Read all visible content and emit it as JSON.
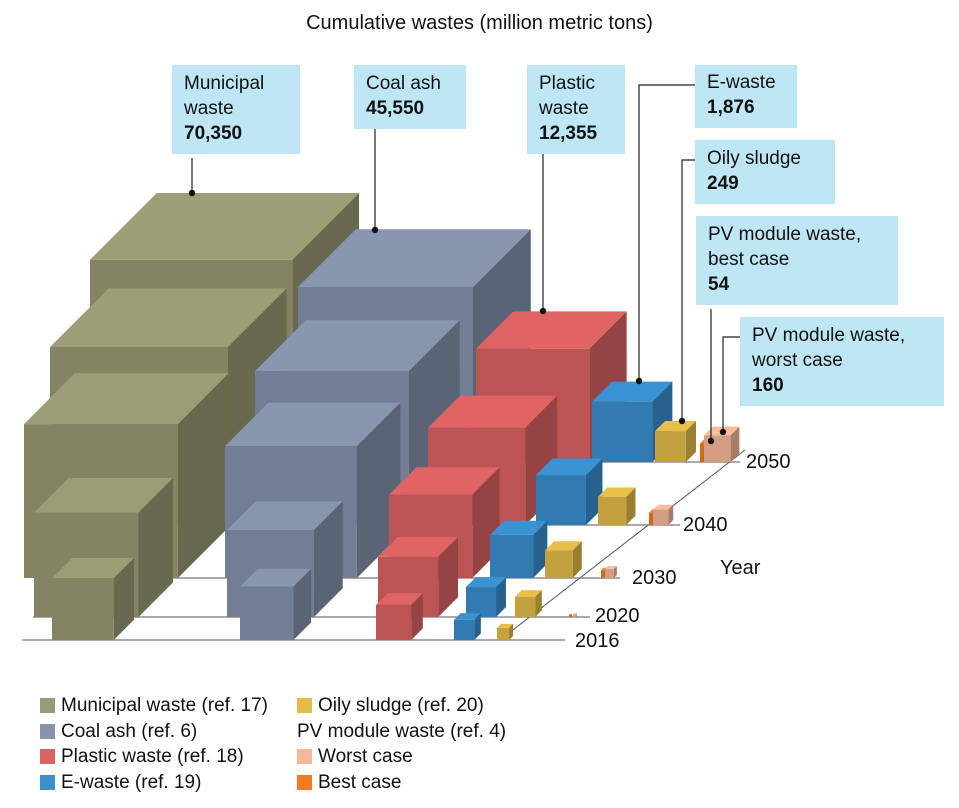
{
  "chart_data": {
    "type": "3d-bar",
    "title": "Cumulative wastes (million metric tons)",
    "zlabel": "Year",
    "years": [
      "2016",
      "2020",
      "2030",
      "2040",
      "2050"
    ],
    "series": [
      {
        "key": "municipal",
        "name": "Municipal waste (ref. 17)",
        "callout": "Municipal waste",
        "color": "#9a9a74",
        "values": [
          2000,
          9700,
          31000,
          47900,
          70350
        ]
      },
      {
        "key": "coal",
        "name": "Coal ash (ref. 6)",
        "callout": "Coal ash",
        "color": "#8593ac",
        "values": [
          1300,
          5600,
          19500,
          31000,
          45550
        ]
      },
      {
        "key": "plastic",
        "name": "Plastic waste (ref. 18)",
        "callout": "Plastic waste",
        "color": "#dc6262",
        "values": [
          370,
          1850,
          4900,
          7800,
          12355
        ]
      },
      {
        "key": "ewaste",
        "name": "E-waste (ref. 19)",
        "callout": "E-waste",
        "color": "#3a8fcf",
        "values": [
          70,
          230,
          680,
          1060,
          1876
        ]
      },
      {
        "key": "oily",
        "name": "Oily sludge (ref. 20)",
        "callout": "Oily sludge",
        "color": "#e2bb48",
        "values": [
          15,
          70,
          180,
          190,
          249
        ]
      },
      {
        "key": "pv_best",
        "name": "Best case",
        "callout": "PV module waste, best case",
        "color": "#f07a26",
        "values": [
          0,
          0.1,
          4,
          15,
          54
        ]
      },
      {
        "key": "pv_worst",
        "name": "Worst case",
        "callout": "PV module waste, worst case",
        "color": "#f5b89a",
        "values": [
          0,
          0.2,
          6,
          30,
          160
        ]
      }
    ],
    "callouts": [
      {
        "series": "municipal",
        "lines": [
          "Municipal",
          "waste"
        ],
        "value": "70,350"
      },
      {
        "series": "coal",
        "lines": [
          "Coal ash"
        ],
        "value": "45,550"
      },
      {
        "series": "plastic",
        "lines": [
          "Plastic",
          "waste"
        ],
        "value": "12,355"
      },
      {
        "series": "ewaste",
        "lines": [
          "E-waste"
        ],
        "value": "1,876"
      },
      {
        "series": "oily",
        "lines": [
          "Oily sludge"
        ],
        "value": "249"
      },
      {
        "series": "pv_best",
        "lines": [
          "PV module waste,",
          "best case"
        ],
        "value": "54"
      },
      {
        "series": "pv_worst",
        "lines": [
          "PV module waste,",
          "worst case"
        ],
        "value": "160"
      }
    ],
    "legend": {
      "left": [
        {
          "label": "Municipal waste (ref. 17)",
          "color": "#9a9a74"
        },
        {
          "label": "Coal ash (ref. 6)",
          "color": "#8593ac"
        },
        {
          "label": "Plastic waste (ref. 18)",
          "color": "#dc6262"
        },
        {
          "label": "E-waste (ref. 19)",
          "color": "#3a8fcf"
        }
      ],
      "right": [
        {
          "label": "Oily sludge (ref. 20)",
          "color": "#e2bb48"
        },
        {
          "label": "PV module waste (ref. 4)",
          "color": null
        },
        {
          "label": "Worst case",
          "color": "#f5b89a"
        },
        {
          "label": "Best case",
          "color": "#f07a26"
        }
      ],
      "placement": "bottom-left"
    }
  }
}
